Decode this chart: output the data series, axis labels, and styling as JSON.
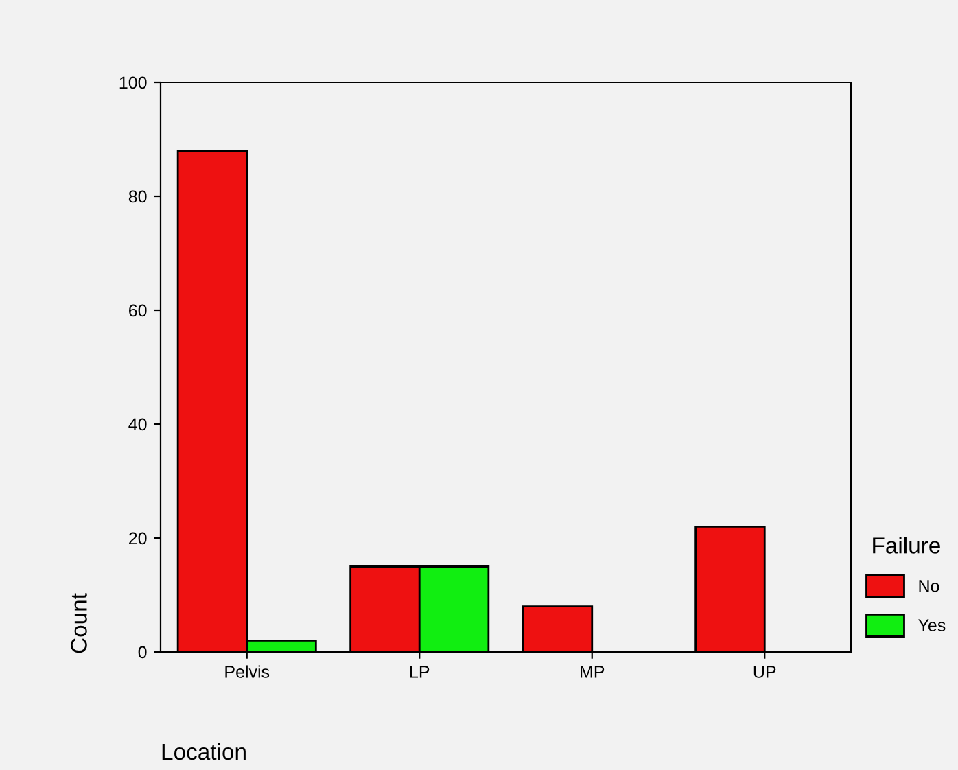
{
  "chart_data": {
    "type": "bar",
    "xlabel": "Location",
    "ylabel": "Count",
    "legend_title": "Failure",
    "categories": [
      "Pelvis",
      "LP",
      "MP",
      "UP"
    ],
    "series": [
      {
        "name": "No",
        "color": "#ee1111",
        "values": [
          88,
          15,
          8,
          22
        ]
      },
      {
        "name": "Yes",
        "color": "#11ee11",
        "values": [
          2,
          15,
          null,
          null
        ]
      }
    ],
    "ylim": [
      0,
      100
    ],
    "yticks": [
      0,
      20,
      40,
      60,
      80,
      100
    ],
    "grid": false,
    "legend": "right"
  }
}
